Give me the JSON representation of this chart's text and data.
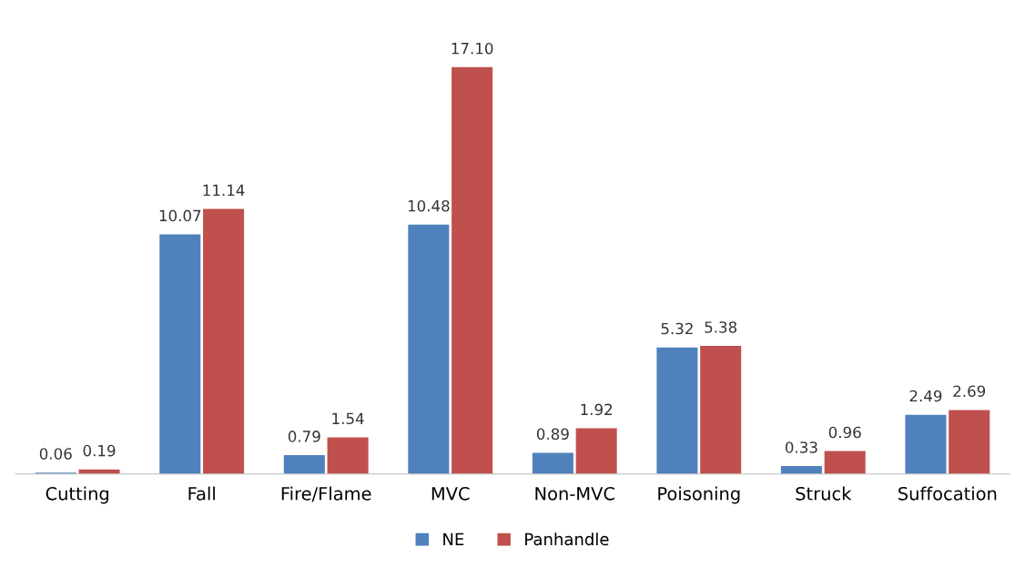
{
  "chart_data": {
    "type": "bar",
    "categories": [
      "Cutting",
      "Fall",
      "Fire/Flame",
      "MVC",
      "Non-MVC",
      "Poisoning",
      "Struck",
      "Suffocation"
    ],
    "series": [
      {
        "name": "NE",
        "color": "#4f81bd",
        "values": [
          0.06,
          10.07,
          0.79,
          10.48,
          0.89,
          5.32,
          0.33,
          2.49
        ],
        "value_labels": [
          "0.06",
          "10.07",
          "0.79",
          "10.48",
          "0.89",
          "5.32",
          "0.33",
          "2.49"
        ]
      },
      {
        "name": "Panhandle",
        "color": "#c0504d",
        "values": [
          0.19,
          11.14,
          1.54,
          17.1,
          1.92,
          5.38,
          0.96,
          2.69
        ],
        "value_labels": [
          "0.19",
          "11.14",
          "1.54",
          "17.10",
          "1.92",
          "5.38",
          "0.96",
          "2.69"
        ]
      }
    ],
    "legend": "bottom",
    "grid": false,
    "tick_labels": "x"
  }
}
